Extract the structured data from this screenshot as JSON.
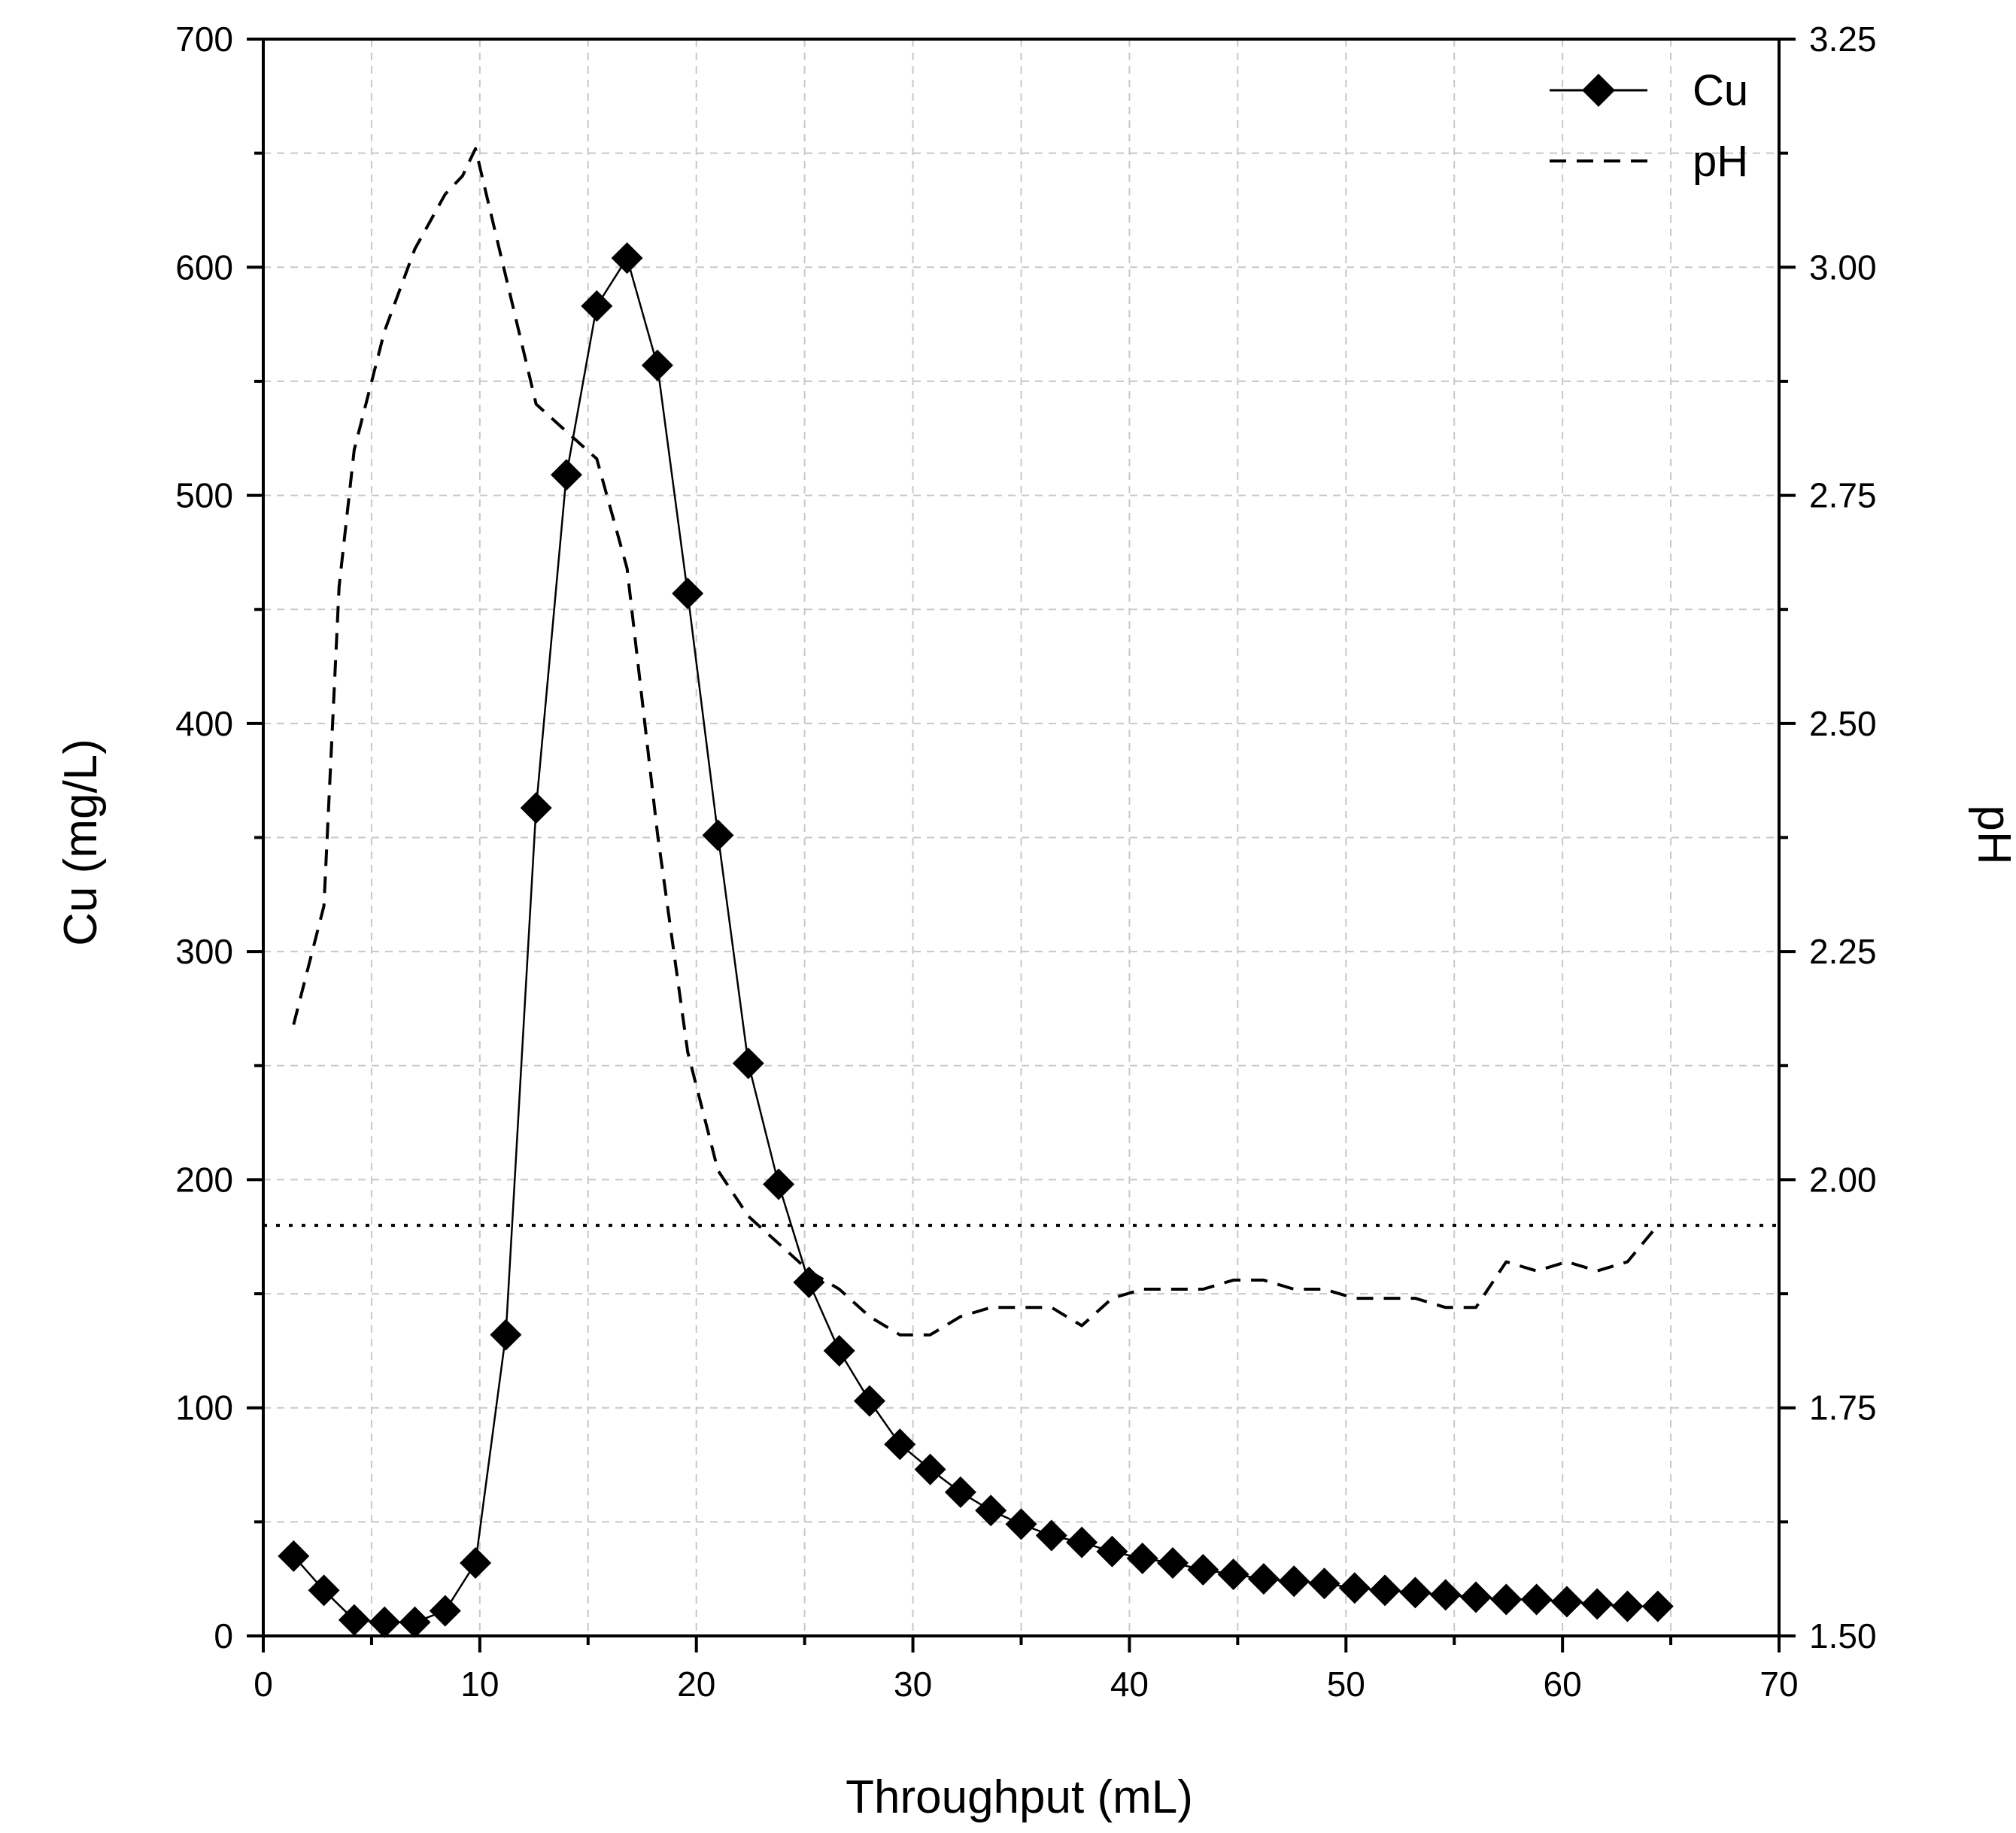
{
  "chart_data": {
    "type": "line",
    "title": "",
    "xlabel": "Throughput (mL)",
    "ylabel": "Cu (mg/L)",
    "y2label": "pH",
    "xlim": [
      0,
      70
    ],
    "ylim": [
      0,
      700
    ],
    "y2lim": [
      1.5,
      3.25
    ],
    "grid": true,
    "legend_position": "top-right",
    "x_ticks": [
      "0",
      "10",
      "20",
      "30",
      "40",
      "50",
      "60",
      "70"
    ],
    "y_ticks": [
      "0",
      "100",
      "200",
      "300",
      "400",
      "500",
      "600",
      "700"
    ],
    "y2_ticks": [
      "1.50",
      "1.75",
      "2.00",
      "2.25",
      "2.50",
      "2.75",
      "3.00",
      "3.25"
    ],
    "x_tick_values": [
      0,
      10,
      20,
      30,
      40,
      50,
      60,
      70
    ],
    "y_tick_values": [
      0,
      100,
      200,
      300,
      400,
      500,
      600,
      700
    ],
    "y2_tick_values": [
      1.5,
      1.75,
      2.0,
      2.25,
      2.5,
      2.75,
      3.0,
      3.25
    ],
    "reference_line": {
      "axis": "y2",
      "value": 1.95,
      "style": "dotted"
    },
    "series": [
      {
        "name": "Cu",
        "axis": "y",
        "style": "solid-diamond",
        "color": "#000000",
        "x": [
          1.4,
          2.8,
          4.2,
          5.6,
          7.0,
          8.4,
          9.8,
          11.2,
          12.6,
          14.0,
          15.4,
          16.8,
          18.2,
          19.6,
          21.0,
          22.4,
          23.8,
          25.2,
          26.6,
          28.0,
          29.4,
          30.8,
          32.2,
          33.6,
          35.0,
          36.4,
          37.8,
          39.2,
          40.6,
          42.0,
          43.4,
          44.8,
          46.2,
          47.6,
          49.0,
          50.4,
          51.8,
          53.2,
          54.6,
          56.0,
          57.4,
          58.8,
          60.2,
          61.6,
          63.0,
          64.4
        ],
        "values": [
          35,
          20,
          7,
          6,
          6,
          11,
          32,
          132,
          363,
          509,
          583,
          604,
          557,
          457,
          351,
          251,
          198,
          155,
          125,
          103,
          84,
          73,
          63,
          55,
          49,
          44,
          41,
          37,
          34,
          32,
          29,
          27,
          25,
          24,
          23,
          21,
          20,
          19,
          18,
          17,
          16,
          16,
          15,
          14,
          13,
          13
        ]
      },
      {
        "name": "pH",
        "axis": "y2",
        "style": "dashed",
        "color": "#000000",
        "x": [
          1.4,
          2.8,
          3.5,
          4.2,
          5.6,
          7.0,
          8.4,
          9.2,
          9.8,
          11.2,
          12.6,
          14.0,
          15.4,
          16.8,
          18.2,
          19.6,
          21.0,
          22.4,
          23.8,
          25.2,
          26.6,
          28.0,
          29.4,
          30.8,
          32.2,
          33.6,
          35.0,
          36.4,
          37.8,
          39.2,
          40.6,
          42.0,
          43.4,
          44.8,
          46.2,
          47.6,
          49.0,
          50.4,
          51.8,
          53.2,
          54.6,
          56.0,
          57.4,
          58.8,
          60.2,
          61.6,
          63.0,
          64.4
        ],
        "values": [
          2.17,
          2.3,
          2.65,
          2.8,
          2.93,
          3.02,
          3.08,
          3.1,
          3.13,
          2.99,
          2.85,
          2.82,
          2.79,
          2.67,
          2.38,
          2.14,
          2.01,
          1.96,
          1.93,
          1.9,
          1.88,
          1.85,
          1.83,
          1.83,
          1.85,
          1.86,
          1.86,
          1.86,
          1.84,
          1.87,
          1.88,
          1.88,
          1.88,
          1.89,
          1.89,
          1.88,
          1.88,
          1.87,
          1.87,
          1.87,
          1.86,
          1.86,
          1.91,
          1.9,
          1.91,
          1.9,
          1.91,
          1.95
        ]
      }
    ]
  }
}
